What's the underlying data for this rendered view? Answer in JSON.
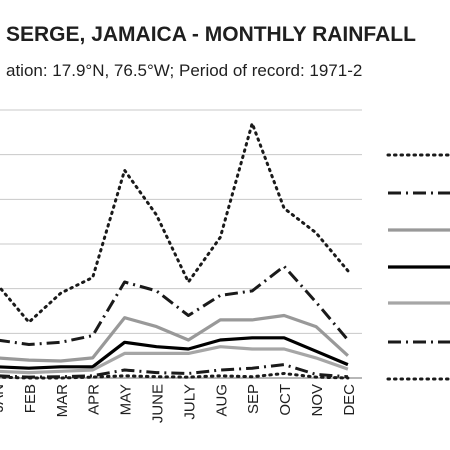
{
  "chart_data": {
    "type": "line",
    "title": "SERGE, JAMAICA - MONTHLY RAINFALL",
    "subtitle": "ation: 17.9°N, 76.5°W; Period of record: 1971-2",
    "categories": [
      "JAN",
      "FEB",
      "MAR",
      "APR",
      "MAY",
      "JUNE",
      "JULY",
      "AUG",
      "SEP",
      "OCT",
      "NOV",
      "DEC"
    ],
    "ylim": [
      0,
      600
    ],
    "grid": true,
    "legend_position": "right",
    "series": [
      {
        "style": "dotted",
        "color": "#1a1a1a",
        "values": [
          210,
          125,
          190,
          225,
          465,
          365,
          215,
          315,
          570,
          380,
          325,
          240
        ]
      },
      {
        "style": "dash-dot",
        "color": "#1a1a1a",
        "values": [
          85,
          75,
          80,
          95,
          215,
          195,
          140,
          185,
          195,
          250,
          170,
          85
        ]
      },
      {
        "style": "solid",
        "color": "#999999",
        "values": [
          45,
          40,
          38,
          45,
          135,
          115,
          85,
          130,
          130,
          140,
          115,
          50
        ]
      },
      {
        "style": "solid",
        "color": "#000000",
        "values": [
          25,
          22,
          25,
          25,
          80,
          70,
          65,
          85,
          90,
          90,
          60,
          30
        ]
      },
      {
        "style": "solid",
        "color": "#a6a6a6",
        "values": [
          15,
          12,
          15,
          18,
          55,
          55,
          55,
          70,
          65,
          65,
          45,
          20
        ]
      },
      {
        "style": "dash-dot",
        "color": "#1a1a1a",
        "values": [
          5,
          2,
          3,
          5,
          18,
          12,
          10,
          18,
          22,
          30,
          8,
          3
        ]
      },
      {
        "style": "dotted",
        "color": "#1a1a1a",
        "values": [
          2,
          0,
          0,
          2,
          5,
          3,
          2,
          5,
          3,
          10,
          2,
          0
        ]
      }
    ]
  }
}
